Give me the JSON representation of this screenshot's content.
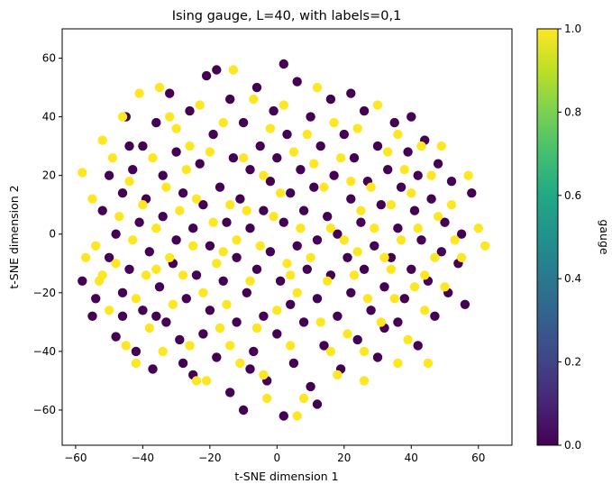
{
  "chart_data": {
    "type": "scatter",
    "title": "Ising gauge, L=40, with labels=0,1",
    "xlabel": "t-SNE dimension 1",
    "ylabel": "t-SNE dimension 2",
    "xlim": [
      -64,
      70
    ],
    "ylim": [
      -72,
      70
    ],
    "xticks": [
      -60,
      -40,
      -20,
      0,
      20,
      40,
      60
    ],
    "yticks": [
      -60,
      -40,
      -20,
      0,
      20,
      40,
      60
    ],
    "xtick_labels": [
      "−60",
      "−40",
      "−20",
      "0",
      "20",
      "40",
      "60"
    ],
    "ytick_labels": [
      "−60",
      "−40",
      "−20",
      "0",
      "20",
      "40",
      "60"
    ],
    "grid": false,
    "colorbar": {
      "label": "gauge",
      "range": [
        0.0,
        1.0
      ],
      "ticks": [
        0.0,
        0.2,
        0.4,
        0.6,
        0.8,
        1.0
      ],
      "tick_labels": [
        "0.0",
        "0.2",
        "0.4",
        "0.6",
        "0.8",
        "1.0"
      ],
      "colormap": "viridis",
      "colors": [
        "#440154",
        "#482475",
        "#414487",
        "#355f8d",
        "#2a788e",
        "#21918c",
        "#22a884",
        "#44bf70",
        "#7ad151",
        "#bddf26",
        "#fde725"
      ]
    },
    "series": [
      {
        "label_value": 0,
        "color": "#440154",
        "points": [
          [
            -58,
            -16
          ],
          [
            -55,
            -28
          ],
          [
            -52,
            8
          ],
          [
            -50,
            -8
          ],
          [
            -50,
            20
          ],
          [
            -48,
            -35
          ],
          [
            -48,
            0
          ],
          [
            -46,
            14
          ],
          [
            -46,
            -20
          ],
          [
            -45,
            40
          ],
          [
            -44,
            -12
          ],
          [
            -43,
            22
          ],
          [
            -42,
            -40
          ],
          [
            -41,
            4
          ],
          [
            -40,
            -26
          ],
          [
            -40,
            30
          ],
          [
            -39,
            12
          ],
          [
            -38,
            -6
          ],
          [
            -37,
            -46
          ],
          [
            -36,
            38
          ],
          [
            -35,
            -18
          ],
          [
            -34,
            20
          ],
          [
            -34,
            6
          ],
          [
            -33,
            -30
          ],
          [
            -32,
            48
          ],
          [
            -31,
            -10
          ],
          [
            -30,
            28
          ],
          [
            -30,
            -2
          ],
          [
            -29,
            -36
          ],
          [
            -28,
            14
          ],
          [
            -27,
            -22
          ],
          [
            -26,
            42
          ],
          [
            -25,
            2
          ],
          [
            -25,
            -48
          ],
          [
            -24,
            -14
          ],
          [
            -23,
            24
          ],
          [
            -22,
            -34
          ],
          [
            -22,
            10
          ],
          [
            -21,
            54
          ],
          [
            -20,
            -4
          ],
          [
            -20,
            -26
          ],
          [
            -19,
            34
          ],
          [
            -18,
            -42
          ],
          [
            -17,
            16
          ],
          [
            -16,
            -16
          ],
          [
            -15,
            4
          ],
          [
            -14,
            46
          ],
          [
            -14,
            -54
          ],
          [
            -13,
            26
          ],
          [
            -12,
            -8
          ],
          [
            -12,
            -30
          ],
          [
            -11,
            12
          ],
          [
            -10,
            38
          ],
          [
            -10,
            -60
          ],
          [
            -9,
            -20
          ],
          [
            -8,
            2
          ],
          [
            -8,
            22
          ],
          [
            -7,
            -40
          ],
          [
            -6,
            50
          ],
          [
            -6,
            -12
          ],
          [
            -5,
            30
          ],
          [
            -4,
            -28
          ],
          [
            -4,
            8
          ],
          [
            -3,
            -50
          ],
          [
            -2,
            18
          ],
          [
            -2,
            -6
          ],
          [
            -1,
            42
          ],
          [
            0,
            -34
          ],
          [
            0,
            26
          ],
          [
            1,
            -16
          ],
          [
            2,
            4
          ],
          [
            2,
            -62
          ],
          [
            3,
            34
          ],
          [
            4,
            -24
          ],
          [
            4,
            14
          ],
          [
            5,
            -44
          ],
          [
            6,
            -4
          ],
          [
            6,
            52
          ],
          [
            7,
            22
          ],
          [
            8,
            -30
          ],
          [
            8,
            8
          ],
          [
            9,
            -12
          ],
          [
            10,
            40
          ],
          [
            10,
            -52
          ],
          [
            11,
            16
          ],
          [
            12,
            -22
          ],
          [
            12,
            -2
          ],
          [
            13,
            30
          ],
          [
            14,
            -38
          ],
          [
            15,
            6
          ],
          [
            16,
            -14
          ],
          [
            16,
            46
          ],
          [
            17,
            20
          ],
          [
            18,
            -28
          ],
          [
            18,
            0
          ],
          [
            19,
            -46
          ],
          [
            20,
            34
          ],
          [
            21,
            -8
          ],
          [
            22,
            12
          ],
          [
            22,
            -20
          ],
          [
            23,
            26
          ],
          [
            24,
            -36
          ],
          [
            25,
            4
          ],
          [
            26,
            -12
          ],
          [
            26,
            42
          ],
          [
            27,
            18
          ],
          [
            28,
            -26
          ],
          [
            29,
            -4
          ],
          [
            30,
            30
          ],
          [
            30,
            -42
          ],
          [
            31,
            10
          ],
          [
            32,
            -18
          ],
          [
            33,
            22
          ],
          [
            34,
            -8
          ],
          [
            35,
            38
          ],
          [
            36,
            -30
          ],
          [
            36,
            2
          ],
          [
            37,
            16
          ],
          [
            38,
            -22
          ],
          [
            39,
            28
          ],
          [
            40,
            -12
          ],
          [
            41,
            8
          ],
          [
            42,
            -38
          ],
          [
            42,
            20
          ],
          [
            43,
            -2
          ],
          [
            44,
            32
          ],
          [
            45,
            -16
          ],
          [
            46,
            12
          ],
          [
            47,
            -28
          ],
          [
            48,
            24
          ],
          [
            49,
            -6
          ],
          [
            50,
            4
          ],
          [
            51,
            -20
          ],
          [
            52,
            18
          ],
          [
            54,
            -10
          ],
          [
            55,
            0
          ],
          [
            56,
            -24
          ],
          [
            58,
            14
          ],
          [
            -54,
            -22
          ],
          [
            -44,
            30
          ],
          [
            -36,
            -28
          ],
          [
            -28,
            -44
          ],
          [
            -18,
            56
          ],
          [
            -8,
            -46
          ],
          [
            2,
            58
          ],
          [
            12,
            -58
          ],
          [
            22,
            48
          ],
          [
            32,
            -32
          ],
          [
            40,
            40
          ],
          [
            -46,
            -28
          ]
        ]
      },
      {
        "label_value": 1,
        "color": "#fde725",
        "points": [
          [
            -58,
            21
          ],
          [
            -57,
            -8
          ],
          [
            -55,
            12
          ],
          [
            -54,
            -4
          ],
          [
            -53,
            -16
          ],
          [
            -52,
            32
          ],
          [
            -50,
            -26
          ],
          [
            -49,
            26
          ],
          [
            -48,
            -10
          ],
          [
            -47,
            6
          ],
          [
            -46,
            40
          ],
          [
            -45,
            -38
          ],
          [
            -44,
            18
          ],
          [
            -43,
            -2
          ],
          [
            -42,
            -22
          ],
          [
            -41,
            48
          ],
          [
            -40,
            10
          ],
          [
            -39,
            -14
          ],
          [
            -38,
            -32
          ],
          [
            -37,
            26
          ],
          [
            -36,
            2
          ],
          [
            -35,
            50
          ],
          [
            -34,
            -40
          ],
          [
            -33,
            16
          ],
          [
            -32,
            -8
          ],
          [
            -31,
            -24
          ],
          [
            -30,
            36
          ],
          [
            -29,
            8
          ],
          [
            -28,
            -14
          ],
          [
            -27,
            22
          ],
          [
            -26,
            -38
          ],
          [
            -25,
            -4
          ],
          [
            -24,
            12
          ],
          [
            -23,
            44
          ],
          [
            -22,
            -20
          ],
          [
            -21,
            -50
          ],
          [
            -20,
            28
          ],
          [
            -19,
            4
          ],
          [
            -18,
            -10
          ],
          [
            -17,
            -32
          ],
          [
            -16,
            38
          ],
          [
            -15,
            -24
          ],
          [
            -14,
            10
          ],
          [
            -13,
            56
          ],
          [
            -12,
            -2
          ],
          [
            -11,
            -44
          ],
          [
            -10,
            26
          ],
          [
            -9,
            8
          ],
          [
            -8,
            -16
          ],
          [
            -7,
            46
          ],
          [
            -6,
            -32
          ],
          [
            -5,
            -4
          ],
          [
            -4,
            20
          ],
          [
            -3,
            -56
          ],
          [
            -2,
            36
          ],
          [
            -1,
            6
          ],
          [
            0,
            -26
          ],
          [
            1,
            14
          ],
          [
            2,
            44
          ],
          [
            3,
            -10
          ],
          [
            4,
            -38
          ],
          [
            5,
            28
          ],
          [
            6,
            -20
          ],
          [
            7,
            2
          ],
          [
            8,
            -56
          ],
          [
            9,
            34
          ],
          [
            10,
            -8
          ],
          [
            11,
            24
          ],
          [
            12,
            50
          ],
          [
            13,
            -30
          ],
          [
            14,
            16
          ],
          [
            15,
            -16
          ],
          [
            16,
            2
          ],
          [
            17,
            38
          ],
          [
            18,
            -48
          ],
          [
            19,
            26
          ],
          [
            20,
            -2
          ],
          [
            21,
            -34
          ],
          [
            22,
            18
          ],
          [
            23,
            -14
          ],
          [
            24,
            36
          ],
          [
            25,
            8
          ],
          [
            26,
            -40
          ],
          [
            27,
            -22
          ],
          [
            28,
            16
          ],
          [
            29,
            2
          ],
          [
            30,
            44
          ],
          [
            31,
            -30
          ],
          [
            32,
            -8
          ],
          [
            33,
            28
          ],
          [
            34,
            10
          ],
          [
            35,
            -22
          ],
          [
            36,
            34
          ],
          [
            37,
            -2
          ],
          [
            38,
            22
          ],
          [
            39,
            -36
          ],
          [
            40,
            14
          ],
          [
            41,
            -18
          ],
          [
            42,
            2
          ],
          [
            43,
            30
          ],
          [
            44,
            -26
          ],
          [
            45,
            -44
          ],
          [
            46,
            20
          ],
          [
            47,
            -8
          ],
          [
            48,
            6
          ],
          [
            49,
            30
          ],
          [
            50,
            -18
          ],
          [
            52,
            10
          ],
          [
            53,
            -2
          ],
          [
            55,
            -8
          ],
          [
            57,
            20
          ],
          [
            60,
            2
          ],
          [
            62,
            -4
          ],
          [
            -52,
            -14
          ],
          [
            -42,
            -44
          ],
          [
            -32,
            40
          ],
          [
            -24,
            -50
          ],
          [
            -14,
            -38
          ],
          [
            -4,
            -48
          ],
          [
            6,
            -62
          ],
          [
            16,
            -40
          ],
          [
            26,
            -50
          ],
          [
            36,
            -44
          ],
          [
            44,
            -14
          ],
          [
            -36,
            -12
          ],
          [
            -16,
            -6
          ],
          [
            4,
            -14
          ],
          [
            24,
            -6
          ],
          [
            34,
            -12
          ],
          [
            -26,
            30
          ]
        ]
      }
    ]
  }
}
